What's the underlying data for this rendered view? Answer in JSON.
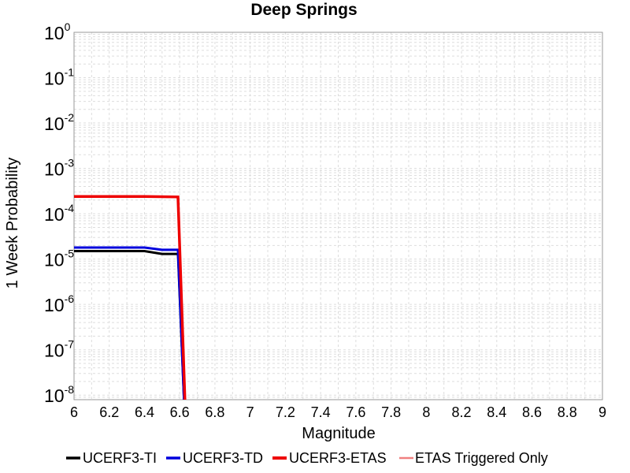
{
  "chart_data": {
    "type": "line",
    "title": "Deep Springs",
    "xlabel": "Magnitude",
    "ylabel": "1 Week Probability",
    "xlim": [
      6,
      9
    ],
    "ylim": [
      -8.1,
      0
    ],
    "yscale": "log",
    "grid": true,
    "legend_position": "bottom",
    "x_ticks": [
      "6",
      "6.2",
      "6.4",
      "6.6",
      "6.8",
      "7",
      "7.2",
      "7.4",
      "7.6",
      "7.8",
      "8",
      "8.2",
      "8.4",
      "8.6",
      "8.8",
      "9"
    ],
    "y_ticks": [
      {
        "base": "10",
        "exp": "0",
        "value": 1
      },
      {
        "base": "10",
        "exp": "-1",
        "value": 0.1
      },
      {
        "base": "10",
        "exp": "-2",
        "value": 0.01
      },
      {
        "base": "10",
        "exp": "-3",
        "value": 0.001
      },
      {
        "base": "10",
        "exp": "-4",
        "value": 0.0001
      },
      {
        "base": "10",
        "exp": "-5",
        "value": 1e-05
      },
      {
        "base": "10",
        "exp": "-6",
        "value": 1e-06
      },
      {
        "base": "10",
        "exp": "-7",
        "value": 1e-07
      },
      {
        "base": "10",
        "exp": "-8",
        "value": 1e-08
      }
    ],
    "series": [
      {
        "name": "UCERF3-TI",
        "color": "#000000",
        "width": 3,
        "points": [
          [
            6.0,
            1.5e-05
          ],
          [
            6.4,
            1.5e-05
          ],
          [
            6.5,
            1.3e-05
          ],
          [
            6.59,
            1.3e-05
          ],
          [
            6.625,
            7e-09
          ]
        ]
      },
      {
        "name": "UCERF3-TD",
        "color": "#0000dd",
        "width": 3,
        "points": [
          [
            6.0,
            1.8e-05
          ],
          [
            6.4,
            1.8e-05
          ],
          [
            6.5,
            1.6e-05
          ],
          [
            6.59,
            1.6e-05
          ],
          [
            6.625,
            7e-09
          ]
        ]
      },
      {
        "name": "UCERF3-ETAS",
        "color": "#ee0000",
        "width": 3.5,
        "points": [
          [
            6.0,
            0.00024
          ],
          [
            6.4,
            0.00024
          ],
          [
            6.59,
            0.000235
          ],
          [
            6.63,
            7e-09
          ]
        ]
      },
      {
        "name": "ETAS Triggered Only",
        "color": "#f08080",
        "width": 2,
        "points": []
      }
    ]
  }
}
